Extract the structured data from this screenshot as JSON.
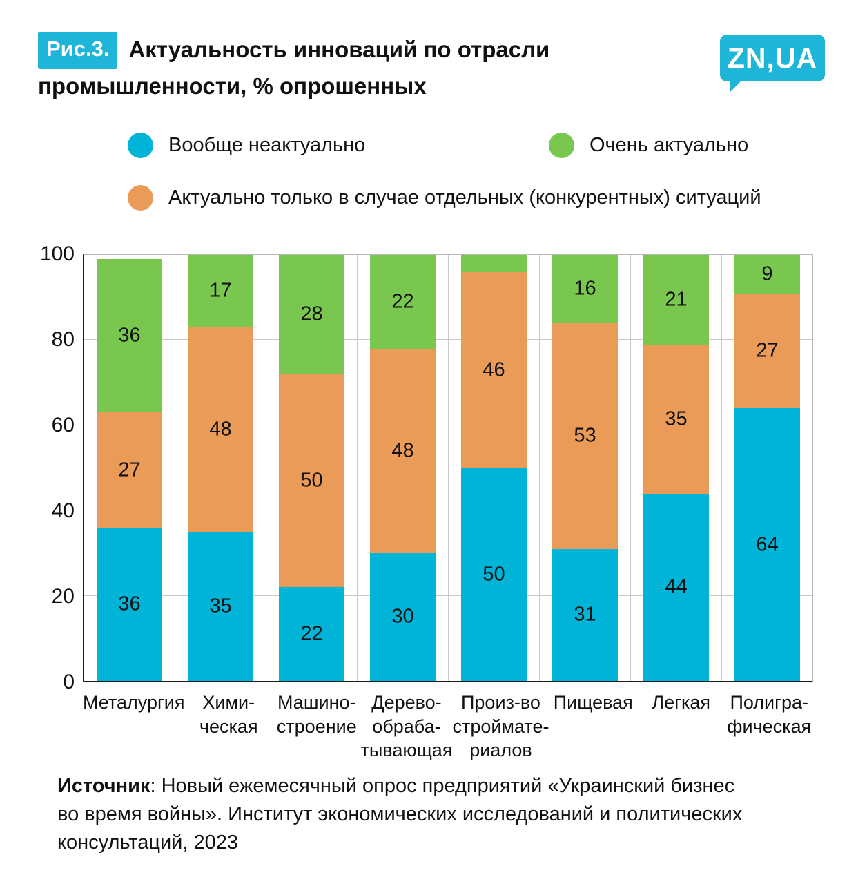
{
  "figure": {
    "tag": "Рис.3.",
    "title_line1": "Актуальность инноваций по отрасли",
    "title_line2": "промышленности, % опрошенных",
    "logo": "ZN,UA"
  },
  "colors": {
    "accent_cyan": "#1fb5d8",
    "bar_cyan": "#00b4d8",
    "bar_green": "#7ac74f",
    "bar_orange": "#eb9b58",
    "grid": "#c9c9c9",
    "axis": "#1a1a1a"
  },
  "legend": [
    {
      "label": "Вообще неактуально",
      "color": "#00b4d8"
    },
    {
      "label": "Очень актуально",
      "color": "#7ac74f"
    },
    {
      "label": "Актуально только в случае отдельных (конкурентных) ситуаций",
      "color": "#eb9b58"
    }
  ],
  "chart_data": {
    "type": "bar",
    "stacked": true,
    "title": "Актуальность инноваций по отрасли промышленности, % опрошенных",
    "categories": [
      "Металургия",
      "Химическая",
      "Машиностроение",
      "Деревообрабатывающая",
      "Произ-во стройматериалов",
      "Пищевая",
      "Легкая",
      "Полиграфическая"
    ],
    "category_label_lines": [
      [
        "Металургия"
      ],
      [
        "Хими-",
        "ческая"
      ],
      [
        "Машино-",
        "строение"
      ],
      [
        "Дерево-",
        "обраба-",
        "тывающая"
      ],
      [
        "Произ-во",
        "строймате-",
        "риалов"
      ],
      [
        "Пищевая"
      ],
      [
        "Легкая"
      ],
      [
        "Полигра-",
        "фическая"
      ]
    ],
    "series": [
      {
        "name": "Вообще неактуально",
        "color": "#00b4d8",
        "values": [
          36,
          35,
          22,
          30,
          50,
          31,
          44,
          64
        ]
      },
      {
        "name": "Актуально только в случае отдельных (конкурентных) ситуаций",
        "color": "#eb9b58",
        "values": [
          27,
          48,
          50,
          48,
          46,
          53,
          35,
          27
        ]
      },
      {
        "name": "Очень актуально",
        "color": "#7ac74f",
        "values": [
          36,
          17,
          28,
          22,
          4,
          16,
          21,
          9
        ]
      }
    ],
    "ylim": [
      0,
      100
    ],
    "yticks": [
      0,
      20,
      40,
      60,
      80,
      100
    ],
    "grid": true,
    "legend_position": "top",
    "label_min_value": 5
  },
  "source": {
    "label": "Источник",
    "text": ": Новый ежемесячный опрос предприятий «Украинский бизнес во время войны». Институт экономических исследований и политических консультаций, 2023"
  }
}
